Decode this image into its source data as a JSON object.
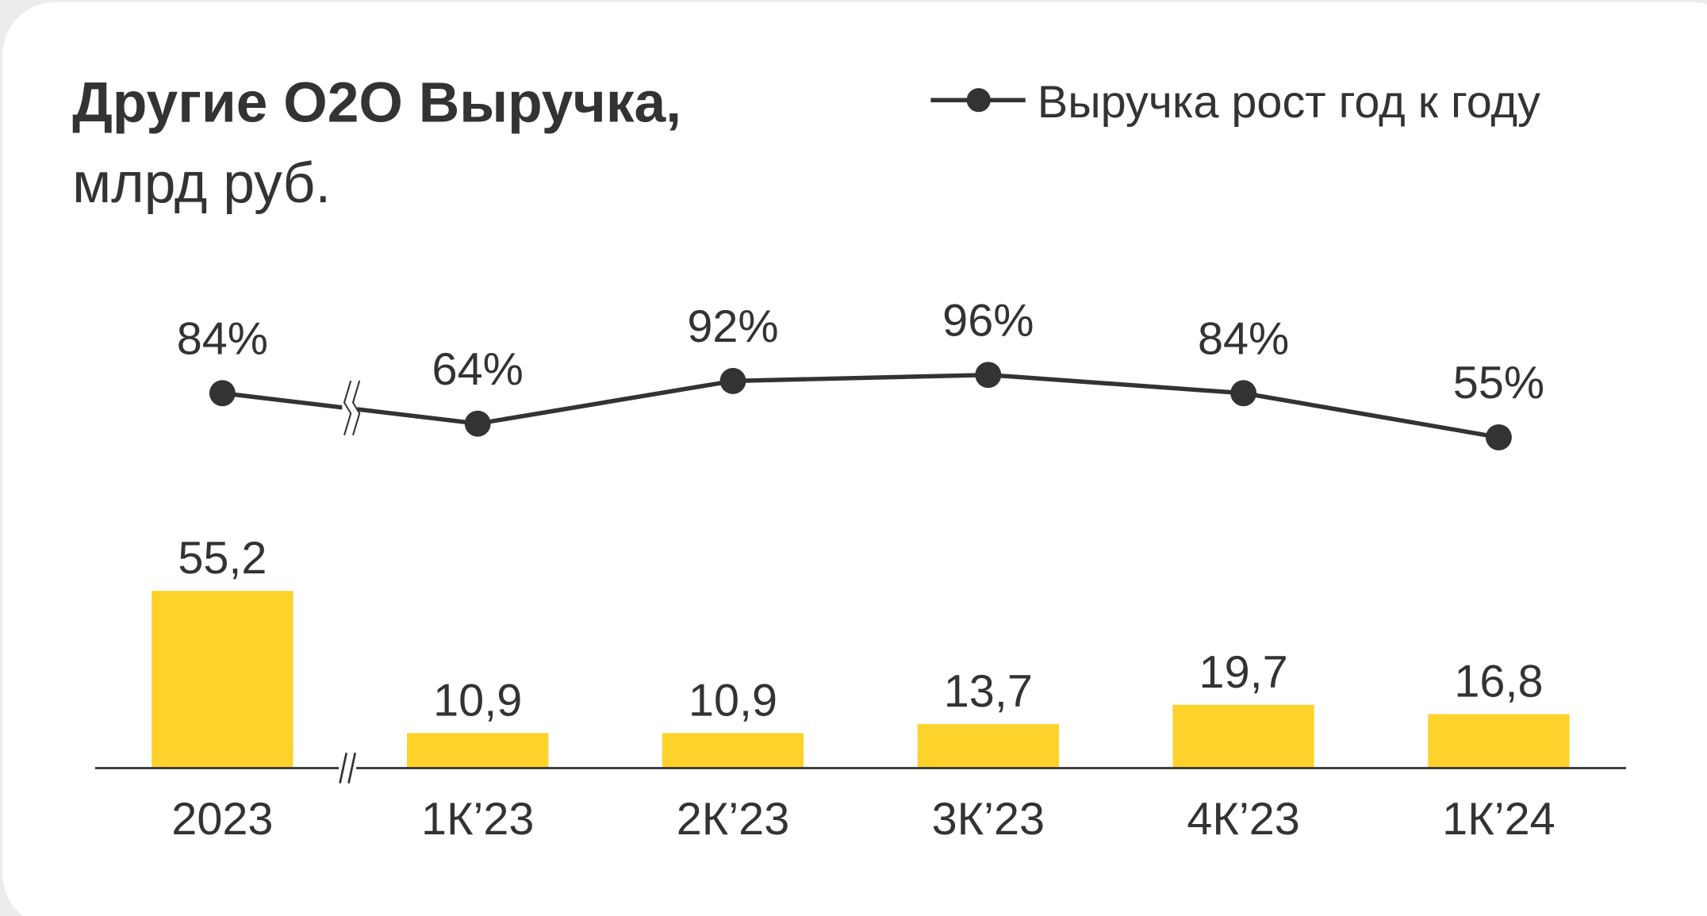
{
  "chart_data": {
    "type": "bar",
    "title": "Другие О2О Выручка,",
    "subtitle": "млрд руб.",
    "categories": [
      "2023",
      "1К’23",
      "2К’23",
      "3К’23",
      "4К’23",
      "1К’24"
    ],
    "ylim": [
      0,
      100
    ],
    "y2lim": [
      0,
      100
    ],
    "series": [
      {
        "name": "Выручка",
        "type": "bar",
        "color": "#fdd22b",
        "values": [
          55.2,
          10.9,
          10.9,
          13.7,
          19.7,
          16.8
        ],
        "value_labels": [
          "55,2",
          "10,9",
          "10,9",
          "13,7",
          "19,7",
          "16,8"
        ]
      },
      {
        "name": "Выручка рост год к году",
        "type": "line",
        "axis": "y2",
        "color": "#333333",
        "values": [
          84,
          64,
          92,
          96,
          84,
          55
        ],
        "value_labels": [
          "84%",
          "64%",
          "92%",
          "96%",
          "84%",
          "55%"
        ]
      }
    ]
  }
}
